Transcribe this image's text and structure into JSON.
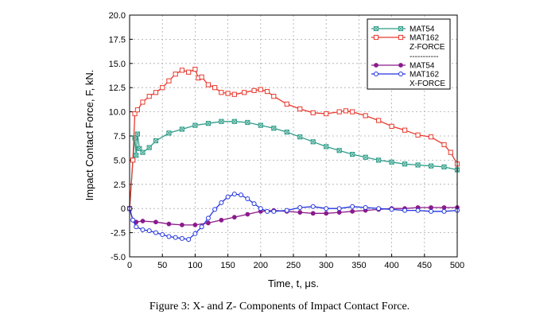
{
  "caption": "Figure 3:  X- and Z- Components of Impact Contact Force.",
  "chart_data": {
    "type": "line",
    "xlabel": "Time, t, μs.",
    "ylabel": "Impact Contact Force, F, kN.",
    "xlim": [
      0,
      500
    ],
    "ylim": [
      -5.0,
      20.0
    ],
    "xticks": [
      "0",
      "50",
      "100",
      "150",
      "200",
      "250",
      "300",
      "350",
      "400",
      "450",
      "500"
    ],
    "yticks": [
      "-5.0",
      "-2.5",
      "0",
      "2.5",
      "5.0",
      "7.5",
      "10.0",
      "12.5",
      "15.0",
      "17.5",
      "20.0"
    ],
    "grid": true,
    "legend_position": "top-right",
    "legend": {
      "z_group_label": "Z-FORCE",
      "separator": "-----------",
      "x_group_label": "X-FORCE"
    },
    "series": [
      {
        "name": "MAT54",
        "group": "Z-FORCE",
        "color": "#2e9c88",
        "marker": "square-x",
        "x": [
          0,
          5,
          8,
          10,
          12,
          15,
          20,
          30,
          40,
          60,
          80,
          100,
          120,
          140,
          160,
          180,
          200,
          220,
          240,
          260,
          280,
          300,
          320,
          340,
          360,
          380,
          400,
          420,
          440,
          460,
          480,
          500
        ],
        "y": [
          0,
          5.0,
          7.3,
          5.5,
          7.7,
          6.2,
          5.8,
          6.3,
          7.0,
          7.8,
          8.2,
          8.6,
          8.8,
          9.0,
          9.0,
          8.9,
          8.6,
          8.3,
          7.9,
          7.4,
          6.9,
          6.4,
          6.0,
          5.6,
          5.3,
          5.0,
          4.8,
          4.6,
          4.5,
          4.4,
          4.3,
          4.0
        ]
      },
      {
        "name": "MAT162",
        "group": "Z-FORCE",
        "color": "#e8392e",
        "marker": "square",
        "x": [
          0,
          5,
          8,
          12,
          20,
          30,
          40,
          50,
          60,
          70,
          80,
          90,
          100,
          105,
          110,
          120,
          130,
          140,
          150,
          160,
          175,
          190,
          200,
          210,
          220,
          240,
          260,
          280,
          300,
          320,
          330,
          340,
          360,
          380,
          400,
          420,
          440,
          460,
          480,
          490,
          500
        ],
        "y": [
          0,
          5.0,
          9.8,
          10.2,
          11.0,
          11.6,
          12.0,
          12.5,
          13.2,
          13.9,
          14.3,
          14.1,
          14.4,
          13.5,
          13.6,
          12.8,
          12.5,
          12.0,
          11.9,
          11.8,
          12.0,
          12.2,
          12.3,
          12.1,
          11.6,
          10.8,
          10.3,
          9.9,
          9.8,
          10.0,
          10.1,
          10.0,
          9.6,
          9.1,
          8.5,
          8.1,
          7.6,
          7.4,
          6.6,
          5.8,
          4.6
        ]
      },
      {
        "name": "MAT54",
        "group": "X-FORCE",
        "color": "#8b1a8b",
        "marker": "dot",
        "x": [
          0,
          5,
          10,
          20,
          40,
          60,
          80,
          100,
          120,
          140,
          160,
          180,
          200,
          220,
          240,
          260,
          280,
          300,
          320,
          340,
          360,
          380,
          400,
          420,
          440,
          460,
          480,
          500
        ],
        "y": [
          0,
          -1.2,
          -1.4,
          -1.3,
          -1.4,
          -1.6,
          -1.7,
          -1.7,
          -1.5,
          -1.2,
          -0.9,
          -0.6,
          -0.3,
          -0.2,
          -0.3,
          -0.4,
          -0.5,
          -0.5,
          -0.4,
          -0.3,
          -0.2,
          -0.1,
          0.0,
          0.0,
          0.1,
          0.1,
          0.1,
          0.1
        ]
      },
      {
        "name": "MAT162",
        "group": "X-FORCE",
        "color": "#2233dd",
        "marker": "circle",
        "x": [
          0,
          5,
          10,
          20,
          30,
          40,
          50,
          60,
          70,
          80,
          90,
          100,
          110,
          120,
          130,
          140,
          150,
          160,
          170,
          180,
          190,
          200,
          210,
          220,
          240,
          260,
          280,
          300,
          320,
          340,
          360,
          380,
          400,
          420,
          440,
          460,
          480,
          500
        ],
        "y": [
          0,
          -1.2,
          -1.9,
          -2.2,
          -2.3,
          -2.5,
          -2.7,
          -2.9,
          -3.0,
          -3.1,
          -3.2,
          -2.6,
          -1.9,
          -1.0,
          -0.1,
          0.6,
          1.2,
          1.5,
          1.4,
          1.0,
          0.5,
          0.0,
          -0.3,
          -0.3,
          -0.2,
          0.1,
          0.2,
          0.0,
          0.0,
          0.2,
          0.1,
          0.0,
          -0.1,
          -0.2,
          -0.2,
          -0.3,
          -0.3,
          -0.2
        ]
      }
    ]
  }
}
